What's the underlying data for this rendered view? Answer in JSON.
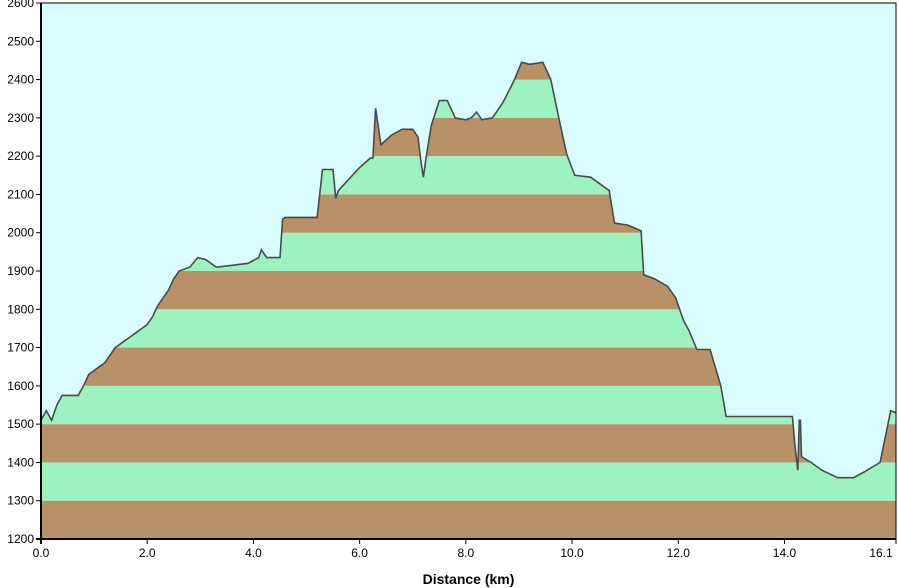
{
  "chart_data": {
    "type": "area",
    "xlabel": "Distance   (km)",
    "ylabel": "",
    "xlim": [
      0,
      16.1
    ],
    "ylim": [
      1200,
      2600
    ],
    "x_ticks": [
      0,
      2,
      4,
      6,
      8,
      10,
      12,
      14,
      16.1
    ],
    "x_tick_labels": [
      "0.0",
      "2.0",
      "4.0",
      "6.0",
      "8.0",
      "10.0",
      "12.0",
      "14.0",
      "16.1"
    ],
    "y_ticks": [
      1200,
      1300,
      1400,
      1500,
      1600,
      1700,
      1800,
      1900,
      2000,
      2100,
      2200,
      2300,
      2400,
      2500,
      2600
    ],
    "y_tick_labels": [
      "1200",
      "1300",
      "1400",
      "1500",
      "1600",
      "1700",
      "1800",
      "1900",
      "2000",
      "2100",
      "2200",
      "2300",
      "2400",
      "2500",
      "2600"
    ],
    "grid": false,
    "band_colors": [
      "#b99166",
      "#9df3c0"
    ],
    "sky_color": "#d9fdff",
    "profile_line_color": "#4a4a4a",
    "series": [
      {
        "x": [
          0.0,
          0.1,
          0.2,
          0.3,
          0.4,
          0.7,
          0.8,
          0.9,
          1.2,
          1.3,
          1.4,
          1.6,
          1.8,
          2.0,
          2.1,
          2.2,
          2.4,
          2.5,
          2.6,
          2.8,
          2.95,
          3.1,
          3.3,
          3.6,
          3.9,
          4.1,
          4.15,
          4.25,
          4.5,
          4.55,
          4.6,
          4.8,
          5.2,
          5.3,
          5.5,
          5.55,
          5.6,
          5.8,
          6.0,
          6.2,
          6.25,
          6.3,
          6.4,
          6.6,
          6.8,
          7.0,
          7.1,
          7.15,
          7.2,
          7.25,
          7.35,
          7.5,
          7.65,
          7.8,
          8.0,
          8.1,
          8.2,
          8.3,
          8.5,
          8.7,
          8.9,
          9.05,
          9.2,
          9.45,
          9.6,
          9.75,
          9.9,
          10.05,
          10.35,
          10.7,
          10.8,
          11.05,
          11.3,
          11.35,
          11.55,
          11.8,
          11.95,
          12.1,
          12.2,
          12.35,
          12.6,
          12.8,
          12.9,
          13.2,
          14.15,
          14.2,
          14.25,
          14.28,
          14.3,
          14.32,
          14.5,
          14.7,
          15.0,
          15.3,
          15.5,
          15.8,
          16.0,
          16.1
        ],
        "y": [
          1510,
          1535,
          1510,
          1550,
          1575,
          1575,
          1600,
          1630,
          1660,
          1680,
          1700,
          1720,
          1740,
          1760,
          1780,
          1810,
          1850,
          1880,
          1900,
          1910,
          1935,
          1930,
          1910,
          1915,
          1920,
          1935,
          1955,
          1935,
          1935,
          2035,
          2040,
          2040,
          2040,
          2165,
          2165,
          2090,
          2110,
          2140,
          2170,
          2195,
          2195,
          2325,
          2230,
          2255,
          2270,
          2270,
          2250,
          2190,
          2145,
          2195,
          2280,
          2345,
          2345,
          2300,
          2295,
          2300,
          2315,
          2295,
          2300,
          2340,
          2395,
          2445,
          2440,
          2445,
          2400,
          2300,
          2205,
          2150,
          2145,
          2110,
          2025,
          2020,
          2005,
          1890,
          1880,
          1860,
          1830,
          1770,
          1745,
          1695,
          1695,
          1600,
          1520,
          1520,
          1520,
          1440,
          1380,
          1510,
          1510,
          1415,
          1400,
          1380,
          1360,
          1360,
          1375,
          1400,
          1535,
          1530
        ]
      }
    ]
  }
}
